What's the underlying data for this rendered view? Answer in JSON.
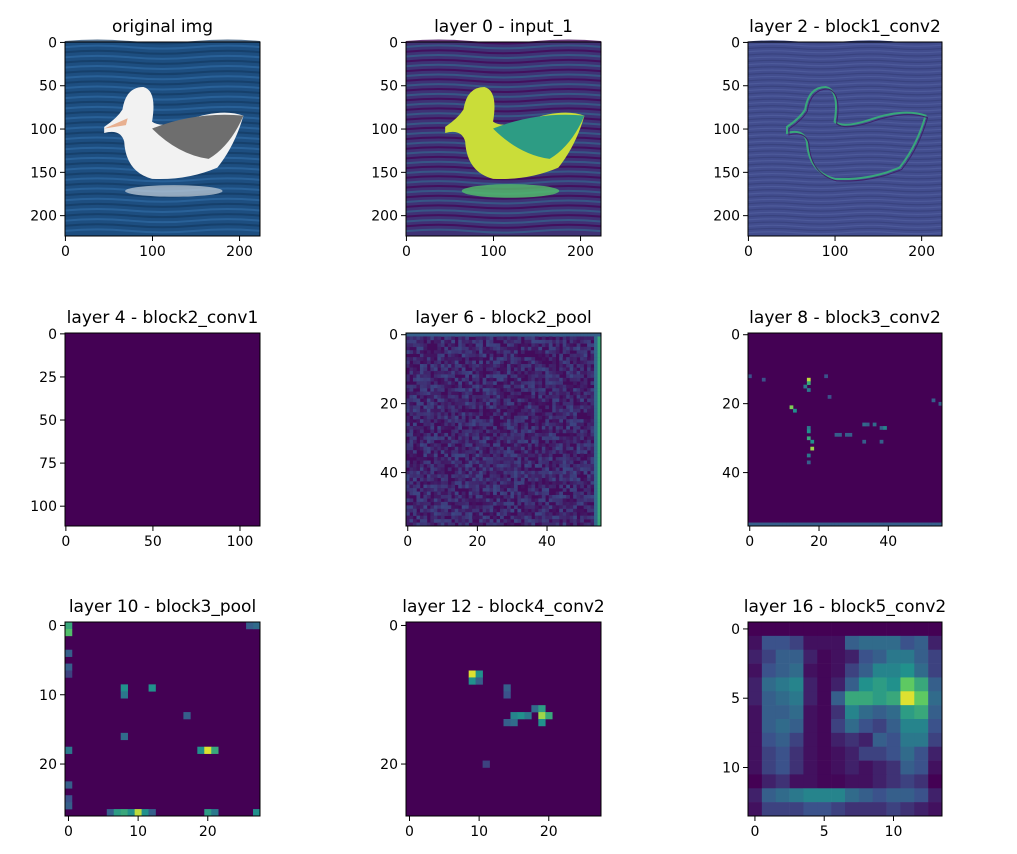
{
  "colors": {
    "viridis_dark": "#440154",
    "viridis_blue": "#3b528b",
    "viridis_teal": "#21918c",
    "viridis_green": "#5ec962",
    "viridis_yellow": "#fde725",
    "photo_sea": "#1d4e80",
    "photo_bird_white": "#f2f2f2",
    "photo_bird_gray": "#6e6e6e"
  },
  "chart_data": [
    {
      "type": "heatmap",
      "title": "original img",
      "image": "photo-albatross",
      "x_ticks": [
        "0",
        "100",
        "200"
      ],
      "y_ticks": [
        "0",
        "50",
        "100",
        "150",
        "200"
      ],
      "extent": [
        224,
        224
      ]
    },
    {
      "type": "heatmap",
      "title": "layer 0 - input_1",
      "image": "viridis-albatross",
      "x_ticks": [
        "0",
        "100",
        "200"
      ],
      "y_ticks": [
        "0",
        "50",
        "100",
        "150",
        "200"
      ],
      "extent": [
        224,
        224
      ]
    },
    {
      "type": "heatmap",
      "title": "layer 2 - block1_conv2",
      "image": "edge-albatross",
      "x_ticks": [
        "0",
        "100",
        "200"
      ],
      "y_ticks": [
        "0",
        "50",
        "100",
        "150",
        "200"
      ],
      "extent": [
        224,
        224
      ]
    },
    {
      "type": "heatmap",
      "title": "layer 4 - block2_conv1",
      "image": "uniform-dark",
      "x_ticks": [
        "0",
        "50",
        "100"
      ],
      "y_ticks": [
        "0",
        "25",
        "50",
        "75",
        "100"
      ],
      "extent": [
        112,
        112
      ]
    },
    {
      "type": "heatmap",
      "title": "layer 6 - block2_pool",
      "image": "noise-pool",
      "x_ticks": [
        "0",
        "20",
        "40"
      ],
      "y_ticks": [
        "0",
        "20",
        "40"
      ],
      "extent": [
        56,
        56
      ]
    },
    {
      "type": "heatmap",
      "title": "layer 8 - block3_conv2",
      "image": "sparse-outline",
      "x_ticks": [
        "0",
        "20",
        "40"
      ],
      "y_ticks": [
        "0",
        "20",
        "40"
      ],
      "extent": [
        56,
        56
      ]
    },
    {
      "type": "heatmap",
      "title": "layer 10 - block3_pool",
      "image": "sparse-points",
      "x_ticks": [
        "0",
        "10",
        "20"
      ],
      "y_ticks": [
        "0",
        "10",
        "20"
      ],
      "extent": [
        28,
        28
      ],
      "hot_cells": [
        [
          0,
          0,
          0.6
        ],
        [
          0,
          1,
          0.7
        ],
        [
          0,
          4,
          0.3
        ],
        [
          0,
          6,
          0.3
        ],
        [
          0,
          7,
          0.2
        ],
        [
          0,
          18,
          0.4
        ],
        [
          0,
          23,
          0.3
        ],
        [
          0,
          25,
          0.25
        ],
        [
          0,
          26,
          0.3
        ],
        [
          8,
          9,
          0.5
        ],
        [
          8,
          10,
          0.4
        ],
        [
          12,
          9,
          0.5
        ],
        [
          17,
          13,
          0.3
        ],
        [
          8,
          16,
          0.35
        ],
        [
          19,
          18,
          0.5
        ],
        [
          20,
          18,
          0.95
        ],
        [
          21,
          18,
          0.6
        ],
        [
          26,
          0,
          0.3
        ],
        [
          6,
          27,
          0.3
        ],
        [
          7,
          27,
          0.55
        ],
        [
          8,
          27,
          0.6
        ],
        [
          9,
          27,
          0.5
        ],
        [
          10,
          27,
          0.9
        ],
        [
          11,
          27,
          0.5
        ],
        [
          12,
          27,
          0.3
        ],
        [
          20,
          27,
          0.55
        ],
        [
          21,
          27,
          0.4
        ],
        [
          27,
          27,
          0.5
        ],
        [
          27,
          0,
          0.35
        ]
      ]
    },
    {
      "type": "heatmap",
      "title": "layer 12 - block4_conv2",
      "image": "sparse-points",
      "x_ticks": [
        "0",
        "10",
        "20"
      ],
      "y_ticks": [
        "0",
        "20"
      ],
      "y_tick_values": [
        0,
        20
      ],
      "x_tick_values": [
        0,
        10,
        20
      ],
      "extent": [
        28,
        28
      ],
      "hot_cells": [
        [
          9,
          7,
          0.95
        ],
        [
          10,
          7,
          0.5
        ],
        [
          9,
          8,
          0.5
        ],
        [
          10,
          8,
          0.3
        ],
        [
          14,
          9,
          0.3
        ],
        [
          14,
          10,
          0.25
        ],
        [
          15,
          13,
          0.45
        ],
        [
          16,
          13,
          0.5
        ],
        [
          17,
          13,
          0.4
        ],
        [
          18,
          12,
          0.35
        ],
        [
          19,
          12,
          0.55
        ],
        [
          19,
          13,
          0.85
        ],
        [
          20,
          13,
          0.6
        ],
        [
          19,
          14,
          0.5
        ],
        [
          14,
          14,
          0.3
        ],
        [
          15,
          14,
          0.35
        ],
        [
          11,
          20,
          0.2
        ]
      ]
    },
    {
      "type": "heatmap",
      "title": "layer 16 - block5_conv2",
      "image": "coarse-activation",
      "x_ticks": [
        "0",
        "5",
        "10"
      ],
      "y_ticks": [
        "0",
        "5",
        "10"
      ],
      "extent": [
        14,
        14
      ],
      "grid": [
        [
          0,
          0,
          0,
          0,
          0,
          0,
          0,
          0,
          0,
          0,
          0,
          0,
          0,
          0
        ],
        [
          0.05,
          0.25,
          0.25,
          0.2,
          0.05,
          0.05,
          0.05,
          0.3,
          0.35,
          0.35,
          0.35,
          0.25,
          0.3,
          0.1
        ],
        [
          0.1,
          0.2,
          0.3,
          0.3,
          0.1,
          0.02,
          0.05,
          0.1,
          0.25,
          0.3,
          0.4,
          0.4,
          0.3,
          0.2
        ],
        [
          0.05,
          0.25,
          0.3,
          0.35,
          0.05,
          0.02,
          0.05,
          0.2,
          0.3,
          0.45,
          0.45,
          0.5,
          0.35,
          0.2
        ],
        [
          0.1,
          0.35,
          0.4,
          0.45,
          0.1,
          0.02,
          0.1,
          0.3,
          0.5,
          0.55,
          0.5,
          0.75,
          0.6,
          0.3
        ],
        [
          0.1,
          0.3,
          0.35,
          0.4,
          0.1,
          0.02,
          0.3,
          0.6,
          0.6,
          0.55,
          0.6,
          0.95,
          0.75,
          0.35
        ],
        [
          0.05,
          0.3,
          0.3,
          0.35,
          0.05,
          0.02,
          0.15,
          0.45,
          0.35,
          0.3,
          0.35,
          0.55,
          0.6,
          0.3
        ],
        [
          0.05,
          0.3,
          0.35,
          0.3,
          0.05,
          0.02,
          0.2,
          0.35,
          0.25,
          0.2,
          0.3,
          0.45,
          0.45,
          0.25
        ],
        [
          0.05,
          0.25,
          0.3,
          0.2,
          0.05,
          0.02,
          0.1,
          0.15,
          0.1,
          0.3,
          0.25,
          0.4,
          0.4,
          0.2
        ],
        [
          0.05,
          0.2,
          0.25,
          0.15,
          0.05,
          0.02,
          0.05,
          0.1,
          0.2,
          0.2,
          0.25,
          0.35,
          0.25,
          0.1
        ],
        [
          0.05,
          0.2,
          0.25,
          0.15,
          0.05,
          0.02,
          0.05,
          0.1,
          0.05,
          0.1,
          0.15,
          0.3,
          0.25,
          0.05
        ],
        [
          0,
          0.1,
          0.15,
          0.05,
          0.05,
          0.02,
          0.02,
          0.05,
          0.05,
          0.1,
          0.15,
          0.2,
          0.15,
          0
        ],
        [
          0.1,
          0.3,
          0.35,
          0.4,
          0.45,
          0.45,
          0.45,
          0.35,
          0.3,
          0.25,
          0.3,
          0.3,
          0.25,
          0.1
        ],
        [
          0.05,
          0.2,
          0.2,
          0.2,
          0.25,
          0.25,
          0.2,
          0.15,
          0.15,
          0.15,
          0.2,
          0.15,
          0.1,
          0.05
        ]
      ]
    }
  ]
}
